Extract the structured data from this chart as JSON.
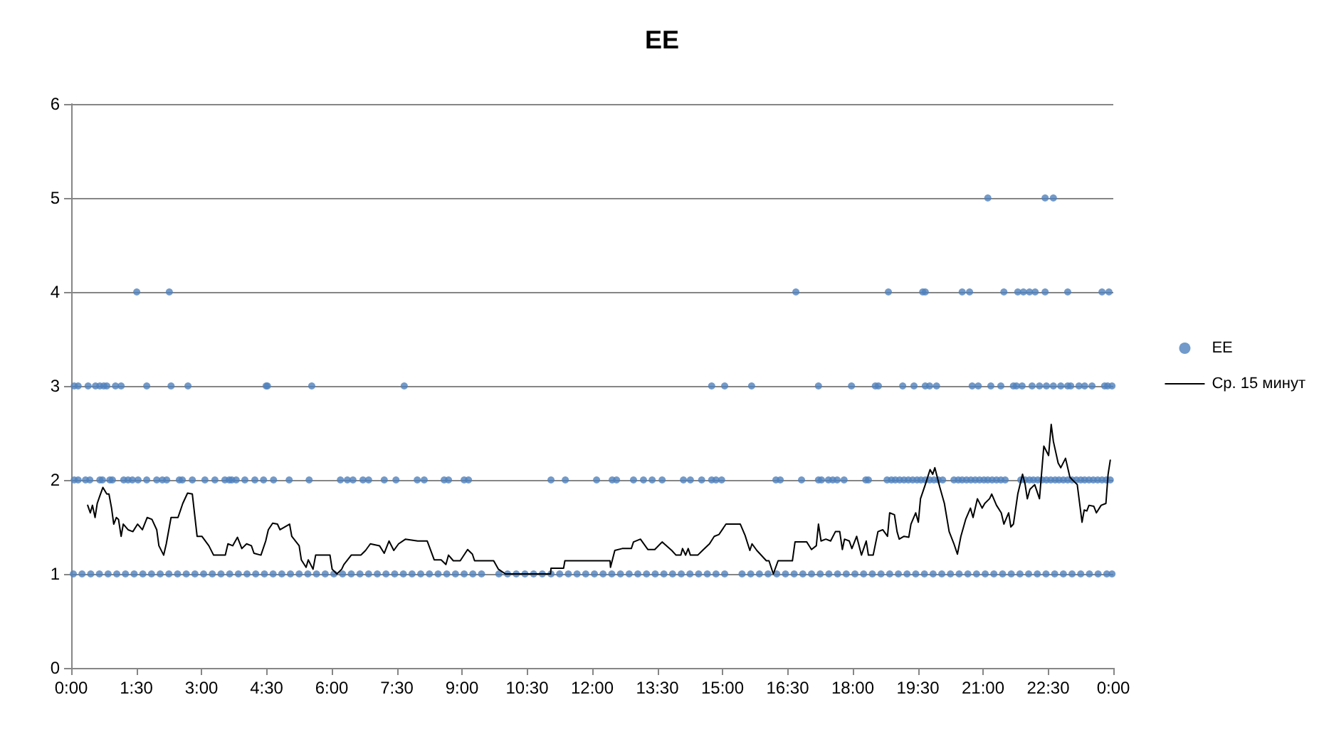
{
  "chart_data": {
    "type": "scatter",
    "title": "EE",
    "xlim": [
      0,
      24
    ],
    "xticks": [
      {
        "value": 0,
        "label": "0:00"
      },
      {
        "value": 1.5,
        "label": "1:30"
      },
      {
        "value": 3,
        "label": "3:00"
      },
      {
        "value": 4.5,
        "label": "4:30"
      },
      {
        "value": 6,
        "label": "6:00"
      },
      {
        "value": 7.5,
        "label": "7:30"
      },
      {
        "value": 9,
        "label": "9:00"
      },
      {
        "value": 10.5,
        "label": "10:30"
      },
      {
        "value": 12,
        "label": "12:00"
      },
      {
        "value": 13.5,
        "label": "13:30"
      },
      {
        "value": 15,
        "label": "15:00"
      },
      {
        "value": 16.5,
        "label": "16:30"
      },
      {
        "value": 18,
        "label": "18:00"
      },
      {
        "value": 19.5,
        "label": "19:30"
      },
      {
        "value": 21,
        "label": "21:00"
      },
      {
        "value": 22.5,
        "label": "22:30"
      },
      {
        "value": 24,
        "label": "0:00"
      }
    ],
    "ylim": [
      0,
      6
    ],
    "yticks": [
      0,
      1,
      2,
      3,
      4,
      5,
      6
    ],
    "grid": "y",
    "legend": "right",
    "series": [
      {
        "name": "EE",
        "marker": "circle",
        "color": "#4f81bd",
        "x": [
          0.05,
          0.25,
          0.45,
          0.65,
          0.85,
          1.05,
          1.25,
          1.45,
          1.65,
          1.85,
          2.05,
          2.25,
          2.45,
          2.65,
          2.85,
          3.05,
          3.25,
          3.45,
          3.65,
          3.85,
          4.05,
          4.25,
          4.45,
          4.65,
          4.85,
          5.05,
          5.25,
          5.45,
          5.65,
          5.85,
          6.05,
          6.25,
          6.45,
          6.65,
          6.85,
          7.05,
          7.25,
          7.45,
          7.65,
          7.85,
          8.05,
          8.25,
          8.45,
          8.65,
          8.85,
          9.05,
          9.25,
          9.45,
          9.85,
          10.05,
          10.25,
          10.45,
          10.65,
          10.85,
          11.05,
          11.25,
          11.45,
          11.65,
          11.85,
          12.05,
          12.25,
          12.45,
          12.65,
          12.85,
          13.05,
          13.25,
          13.45,
          13.65,
          13.85,
          14.05,
          14.25,
          14.45,
          14.65,
          14.85,
          15.05,
          15.45,
          15.65,
          15.85,
          16.05,
          16.25,
          16.45,
          16.65,
          16.85,
          17.05,
          17.25,
          17.45,
          17.65,
          17.85,
          18.05,
          18.25,
          18.45,
          18.65,
          18.85,
          19.05,
          19.25,
          19.45,
          19.65,
          19.85,
          20.05,
          20.25,
          20.45,
          20.65,
          20.85,
          21.05,
          21.25,
          21.45,
          21.65,
          21.85,
          22.05,
          22.25,
          22.45,
          22.65,
          22.85,
          23.05,
          23.25,
          23.45,
          23.65,
          23.85,
          23.97,
          0.07,
          0.16,
          0.33,
          0.43,
          0.66,
          0.72,
          0.89,
          0.95,
          1.21,
          1.31,
          1.41,
          1.54,
          1.74,
          1.97,
          2.1,
          2.2,
          2.49,
          2.56,
          2.79,
          3.08,
          3.31,
          3.54,
          3.64,
          3.7,
          3.8,
          4.0,
          4.23,
          4.43,
          4.66,
          5.02,
          5.48,
          6.2,
          6.36,
          6.49,
          6.72,
          6.85,
          7.21,
          7.48,
          7.97,
          8.13,
          8.59,
          8.69,
          9.05,
          9.15,
          11.05,
          11.38,
          12.1,
          12.46,
          12.56,
          12.95,
          13.18,
          13.38,
          13.61,
          14.1,
          14.26,
          14.52,
          14.75,
          14.85,
          14.98,
          16.23,
          16.33,
          16.82,
          17.21,
          17.28,
          17.44,
          17.54,
          17.64,
          17.8,
          18.3,
          18.36,
          18.79,
          18.89,
          18.98,
          19.08,
          19.18,
          19.28,
          19.38,
          19.48,
          19.57,
          19.67,
          19.77,
          19.87,
          19.97,
          20.07,
          20.33,
          20.43,
          20.52,
          20.62,
          20.72,
          20.82,
          20.92,
          21.02,
          21.11,
          21.21,
          21.31,
          21.41,
          21.51,
          21.87,
          21.97,
          22.07,
          22.16,
          22.26,
          22.36,
          22.46,
          22.56,
          22.66,
          22.75,
          22.85,
          22.95,
          23.05,
          23.15,
          23.25,
          23.34,
          23.44,
          23.54,
          23.64,
          23.74,
          23.84,
          23.93,
          0.07,
          0.16,
          0.39,
          0.56,
          0.66,
          0.75,
          0.82,
          1.02,
          1.15,
          1.74,
          2.3,
          2.69,
          4.49,
          4.52,
          5.54,
          7.67,
          14.75,
          15.05,
          15.67,
          17.21,
          17.97,
          18.52,
          18.59,
          19.15,
          19.41,
          19.67,
          19.77,
          19.93,
          20.75,
          20.89,
          21.18,
          21.41,
          21.7,
          21.77,
          21.9,
          22.13,
          22.3,
          22.46,
          22.62,
          22.79,
          22.95,
          23.02,
          23.21,
          23.34,
          23.51,
          23.8,
          23.87,
          23.97,
          1.51,
          2.26,
          16.69,
          18.82,
          19.61,
          19.67,
          20.52,
          20.69,
          21.48,
          21.8,
          21.93,
          22.07,
          22.2,
          22.43,
          22.95,
          23.74,
          23.9,
          21.11,
          22.43,
          22.62
        ],
        "values": [
          1,
          1,
          1,
          1,
          1,
          1,
          1,
          1,
          1,
          1,
          1,
          1,
          1,
          1,
          1,
          1,
          1,
          1,
          1,
          1,
          1,
          1,
          1,
          1,
          1,
          1,
          1,
          1,
          1,
          1,
          1,
          1,
          1,
          1,
          1,
          1,
          1,
          1,
          1,
          1,
          1,
          1,
          1,
          1,
          1,
          1,
          1,
          1,
          1,
          1,
          1,
          1,
          1,
          1,
          1,
          1,
          1,
          1,
          1,
          1,
          1,
          1,
          1,
          1,
          1,
          1,
          1,
          1,
          1,
          1,
          1,
          1,
          1,
          1,
          1,
          1,
          1,
          1,
          1,
          1,
          1,
          1,
          1,
          1,
          1,
          1,
          1,
          1,
          1,
          1,
          1,
          1,
          1,
          1,
          1,
          1,
          1,
          1,
          1,
          1,
          1,
          1,
          1,
          1,
          1,
          1,
          1,
          1,
          1,
          1,
          1,
          1,
          1,
          1,
          1,
          1,
          1,
          1,
          1,
          2,
          2,
          2,
          2,
          2,
          2,
          2,
          2,
          2,
          2,
          2,
          2,
          2,
          2,
          2,
          2,
          2,
          2,
          2,
          2,
          2,
          2,
          2,
          2,
          2,
          2,
          2,
          2,
          2,
          2,
          2,
          2,
          2,
          2,
          2,
          2,
          2,
          2,
          2,
          2,
          2,
          2,
          2,
          2,
          2,
          2,
          2,
          2,
          2,
          2,
          2,
          2,
          2,
          2,
          2,
          2,
          2,
          2,
          2,
          2,
          2,
          2,
          2,
          2,
          2,
          2,
          2,
          2,
          2,
          2,
          2,
          2,
          2,
          2,
          2,
          2,
          2,
          2,
          2,
          2,
          2,
          2,
          2,
          2,
          2,
          2,
          2,
          2,
          2,
          2,
          2,
          2,
          2,
          2,
          2,
          2,
          2,
          2,
          2,
          2,
          2,
          2,
          2,
          2,
          2,
          2,
          2,
          2,
          2,
          2,
          2,
          2,
          2,
          2,
          2,
          2,
          2,
          2,
          2,
          3,
          3,
          3,
          3,
          3,
          3,
          3,
          3,
          3,
          3,
          3,
          3,
          3,
          3,
          3,
          3,
          3,
          3,
          3,
          3,
          3,
          3,
          3,
          3,
          3,
          3,
          3,
          3,
          3,
          3,
          3,
          3,
          3,
          3,
          3,
          3,
          3,
          3,
          3,
          3,
          3,
          3,
          3,
          3,
          3,
          3,
          3,
          3,
          4,
          4,
          4,
          4,
          4,
          4,
          4,
          4,
          4,
          4,
          4,
          4,
          4,
          4,
          4,
          4,
          4,
          5,
          5,
          5
        ]
      },
      {
        "name": "Ср. 15 минут",
        "type": "line",
        "marker": "none",
        "line_style": "solid",
        "color": "#000000",
        "x": [
          0.38,
          0.44,
          0.49,
          0.55,
          0.6,
          0.66,
          0.73,
          0.82,
          0.87,
          0.93,
          0.98,
          1.04,
          1.09,
          1.15,
          1.2,
          1.31,
          1.42,
          1.53,
          1.64,
          1.75,
          1.86,
          1.97,
          2.02,
          2.13,
          2.19,
          2.3,
          2.46,
          2.57,
          2.68,
          2.79,
          2.9,
          3.01,
          3.17,
          3.28,
          3.55,
          3.61,
          3.72,
          3.83,
          3.93,
          4.04,
          4.15,
          4.21,
          4.37,
          4.48,
          4.54,
          4.64,
          4.75,
          4.81,
          5.03,
          5.08,
          5.25,
          5.3,
          5.41,
          5.46,
          5.57,
          5.63,
          5.74,
          5.96,
          6.01,
          6.12,
          6.23,
          6.28,
          6.45,
          6.67,
          6.78,
          6.89,
          7.1,
          7.21,
          7.32,
          7.43,
          7.54,
          7.7,
          7.98,
          8.2,
          8.36,
          8.52,
          8.63,
          8.69,
          8.8,
          8.96,
          9.13,
          9.24,
          9.29,
          9.73,
          9.84,
          10.0,
          11.04,
          11.05,
          11.34,
          11.37,
          12.41,
          12.42,
          12.52,
          12.69,
          12.9,
          12.95,
          13.11,
          13.28,
          13.44,
          13.61,
          13.83,
          13.93,
          14.04,
          14.08,
          14.15,
          14.21,
          14.26,
          14.43,
          14.54,
          14.7,
          14.81,
          14.92,
          15.08,
          15.41,
          15.52,
          15.63,
          15.68,
          15.79,
          16.01,
          16.07,
          16.17,
          16.28,
          16.61,
          16.67,
          16.94,
          17.05,
          17.16,
          17.21,
          17.27,
          17.38,
          17.49,
          17.6,
          17.7,
          17.76,
          17.81,
          17.92,
          17.98,
          18.09,
          18.2,
          18.31,
          18.36,
          18.47,
          18.58,
          18.69,
          18.8,
          18.85,
          18.96,
          19.02,
          19.07,
          19.18,
          19.29,
          19.34,
          19.45,
          19.51,
          19.56,
          19.67,
          19.78,
          19.84,
          19.89,
          20.0,
          20.11,
          20.22,
          20.33,
          20.41,
          20.49,
          20.6,
          20.71,
          20.77,
          20.87,
          20.98,
          21.04,
          21.15,
          21.2,
          21.31,
          21.42,
          21.48,
          21.59,
          21.64,
          21.7,
          21.8,
          21.91,
          21.97,
          22.02,
          22.08,
          22.19,
          22.3,
          22.4,
          22.51,
          22.57,
          22.62,
          22.73,
          22.79,
          22.9,
          23.0,
          23.06,
          23.17,
          23.28,
          23.33,
          23.39,
          23.44,
          23.55,
          23.61,
          23.72,
          23.83,
          23.88,
          23.93
        ],
        "values": [
          1.73,
          1.65,
          1.73,
          1.6,
          1.75,
          1.83,
          1.92,
          1.85,
          1.85,
          1.7,
          1.53,
          1.6,
          1.58,
          1.4,
          1.53,
          1.47,
          1.45,
          1.53,
          1.47,
          1.6,
          1.58,
          1.47,
          1.3,
          1.2,
          1.32,
          1.6,
          1.6,
          1.75,
          1.86,
          1.85,
          1.4,
          1.4,
          1.3,
          1.2,
          1.2,
          1.32,
          1.3,
          1.39,
          1.27,
          1.32,
          1.3,
          1.22,
          1.2,
          1.35,
          1.47,
          1.54,
          1.53,
          1.47,
          1.53,
          1.4,
          1.3,
          1.15,
          1.07,
          1.15,
          1.05,
          1.2,
          1.2,
          1.2,
          1.05,
          1.0,
          1.05,
          1.1,
          1.2,
          1.2,
          1.25,
          1.32,
          1.3,
          1.22,
          1.35,
          1.25,
          1.32,
          1.37,
          1.35,
          1.35,
          1.15,
          1.15,
          1.1,
          1.2,
          1.14,
          1.14,
          1.26,
          1.21,
          1.14,
          1.14,
          1.05,
          1.0,
          1.0,
          1.06,
          1.06,
          1.14,
          1.14,
          1.07,
          1.25,
          1.27,
          1.27,
          1.34,
          1.37,
          1.26,
          1.26,
          1.34,
          1.25,
          1.2,
          1.2,
          1.27,
          1.2,
          1.27,
          1.2,
          1.2,
          1.25,
          1.32,
          1.4,
          1.42,
          1.53,
          1.53,
          1.41,
          1.25,
          1.32,
          1.25,
          1.14,
          1.14,
          1.0,
          1.14,
          1.14,
          1.34,
          1.34,
          1.26,
          1.3,
          1.53,
          1.35,
          1.37,
          1.35,
          1.45,
          1.45,
          1.26,
          1.37,
          1.35,
          1.27,
          1.4,
          1.2,
          1.35,
          1.2,
          1.2,
          1.45,
          1.47,
          1.4,
          1.65,
          1.63,
          1.45,
          1.37,
          1.4,
          1.39,
          1.53,
          1.65,
          1.55,
          1.8,
          1.95,
          2.11,
          2.06,
          2.13,
          1.93,
          1.75,
          1.45,
          1.32,
          1.21,
          1.4,
          1.58,
          1.7,
          1.6,
          1.8,
          1.7,
          1.75,
          1.8,
          1.85,
          1.73,
          1.65,
          1.53,
          1.65,
          1.5,
          1.53,
          1.85,
          2.06,
          1.95,
          1.8,
          1.9,
          1.95,
          1.8,
          2.36,
          2.26,
          2.59,
          2.41,
          2.18,
          2.13,
          2.23,
          2.03,
          2.0,
          1.95,
          1.55,
          1.68,
          1.67,
          1.73,
          1.72,
          1.65,
          1.73,
          1.75,
          2.06,
          2.21
        ]
      }
    ]
  }
}
